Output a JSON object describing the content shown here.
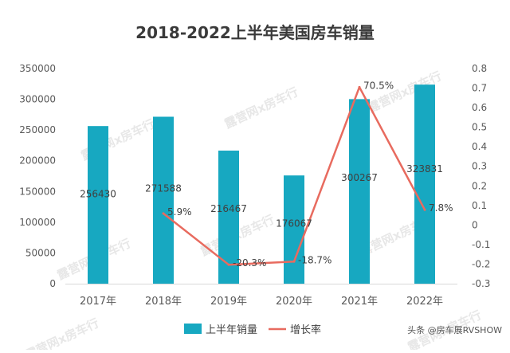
{
  "chart_data": {
    "type": "bar",
    "title": "2018-2022上半年美国房车销量",
    "categories": [
      "2017年",
      "2018年",
      "2019年",
      "2020年",
      "2021年",
      "2022年"
    ],
    "series": [
      {
        "name": "上半年销量",
        "type": "bar",
        "axis": "left",
        "values": [
          256430,
          271588,
          216467,
          176067,
          300267,
          323831
        ],
        "labels": [
          "256430",
          "271588",
          "216467",
          "176067",
          "300267",
          "323831"
        ]
      },
      {
        "name": "增长率",
        "type": "line",
        "axis": "right",
        "values": [
          null,
          0.059,
          -0.203,
          -0.187,
          0.705,
          0.078
        ],
        "labels": [
          "",
          "5.9%",
          "-20.3%",
          "-18.7%",
          "70.5%",
          "7.8%"
        ]
      }
    ],
    "yleft": {
      "ylim": [
        0,
        350000
      ],
      "ticks": [
        "0",
        "50000",
        "100000",
        "150000",
        "200000",
        "250000",
        "300000",
        "350000"
      ]
    },
    "yright": {
      "ylim": [
        -0.3,
        0.8
      ],
      "ticks": [
        "-0.3",
        "-0.2",
        "-0.1",
        "0",
        "0.1",
        "0.2",
        "0.3",
        "0.4",
        "0.5",
        "0.6",
        "0.7",
        "0.8"
      ]
    },
    "grid": false,
    "legend": "bottom",
    "colors": {
      "bar": "#17a8c1",
      "line": "#e86b5f",
      "axis": "#d9d9d9"
    }
  },
  "watermark": "头条 @房车展RVSHOW",
  "background_mark": "露营网x房车行"
}
